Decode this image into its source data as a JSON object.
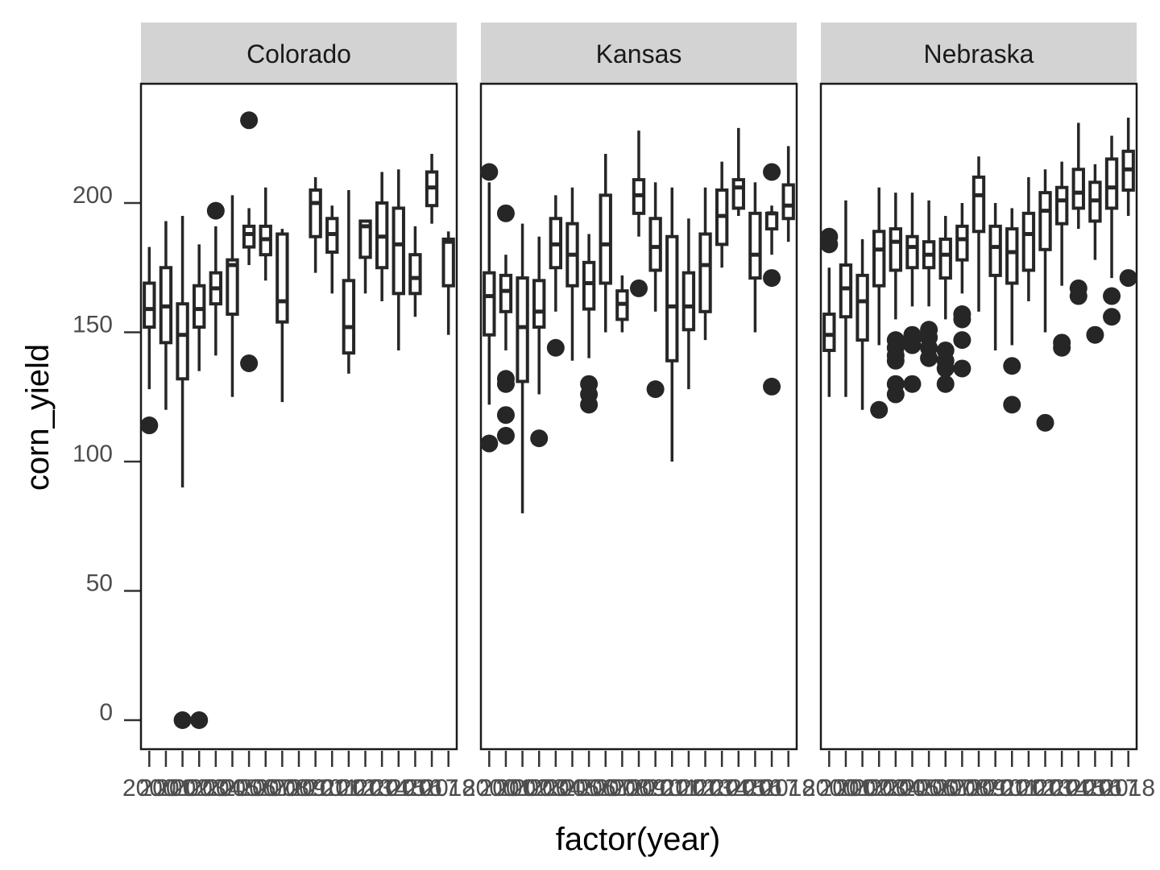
{
  "chart_data": {
    "type": "boxplot",
    "xlabel": "factor(year)",
    "ylabel": "corn_yield",
    "ylim": [
      -12,
      245
    ],
    "yticks": [
      0,
      50,
      100,
      150,
      200
    ],
    "years": [
      "2000",
      "2001",
      "2002",
      "2003",
      "2004",
      "2005",
      "2006",
      "2007",
      "2008",
      "2009",
      "2010",
      "2011",
      "2012",
      "2013",
      "2014",
      "2015",
      "2016",
      "2017",
      "2018"
    ],
    "colors": {
      "box": "#262626",
      "outlier": "#262626",
      "strip": "#d3d3d3",
      "axis": "#333333",
      "panel_border": "#1a1a1a"
    },
    "panels": [
      {
        "name": "Colorado",
        "boxes": [
          {
            "year": "2000",
            "lw": 128,
            "q1": 152,
            "med": 159,
            "q3": 169,
            "uw": 183,
            "outliers": [
              114
            ]
          },
          {
            "year": "2001",
            "lw": 120,
            "q1": 146,
            "med": 160,
            "q3": 175,
            "uw": 193,
            "outliers": []
          },
          {
            "year": "2002",
            "lw": 90,
            "q1": 132,
            "med": 149,
            "q3": 161,
            "uw": 195,
            "outliers": [
              0
            ]
          },
          {
            "year": "2003",
            "lw": 135,
            "q1": 152,
            "med": 159,
            "q3": 168,
            "uw": 184,
            "outliers": [
              0
            ]
          },
          {
            "year": "2004",
            "lw": 141,
            "q1": 161,
            "med": 167,
            "q3": 173,
            "uw": 191,
            "outliers": [
              197
            ]
          },
          {
            "year": "2005",
            "lw": 125,
            "q1": 157,
            "med": 176,
            "q3": 178,
            "uw": 203,
            "outliers": []
          },
          {
            "year": "2006",
            "lw": 176,
            "q1": 183,
            "med": 188,
            "q3": 191,
            "uw": 198,
            "outliers": [
              232,
              138
            ]
          },
          {
            "year": "2007",
            "lw": 170,
            "q1": 180,
            "med": 186,
            "q3": 191,
            "uw": 206,
            "outliers": []
          },
          {
            "year": "2008",
            "lw": 123,
            "q1": 154,
            "med": 162,
            "q3": 188,
            "uw": 190,
            "outliers": []
          },
          {
            "year": "2010",
            "lw": 173,
            "q1": 187,
            "med": 200,
            "q3": 205,
            "uw": 210,
            "outliers": []
          },
          {
            "year": "2011",
            "lw": 165,
            "q1": 181,
            "med": 188,
            "q3": 194,
            "uw": 199,
            "outliers": []
          },
          {
            "year": "2012",
            "lw": 134,
            "q1": 142,
            "med": 152,
            "q3": 170,
            "uw": 205,
            "outliers": []
          },
          {
            "year": "2013",
            "lw": 165,
            "q1": 179,
            "med": 191,
            "q3": 193,
            "uw": 193,
            "outliers": []
          },
          {
            "year": "2014",
            "lw": 162,
            "q1": 175,
            "med": 187,
            "q3": 200,
            "uw": 212,
            "outliers": []
          },
          {
            "year": "2015",
            "lw": 143,
            "q1": 165,
            "med": 184,
            "q3": 198,
            "uw": 213,
            "outliers": []
          },
          {
            "year": "2016",
            "lw": 156,
            "q1": 165,
            "med": 171,
            "q3": 180,
            "uw": 191,
            "outliers": []
          },
          {
            "year": "2017",
            "lw": 192,
            "q1": 199,
            "med": 206,
            "q3": 212,
            "uw": 219,
            "outliers": []
          },
          {
            "year": "2018",
            "lw": 149,
            "q1": 168,
            "med": 185,
            "q3": 186,
            "uw": 189,
            "outliers": []
          }
        ]
      },
      {
        "name": "Kansas",
        "boxes": [
          {
            "year": "2000",
            "lw": 122,
            "q1": 149,
            "med": 164,
            "q3": 173,
            "uw": 208,
            "outliers": [
              212,
              107
            ]
          },
          {
            "year": "2001",
            "lw": 143,
            "q1": 158,
            "med": 166,
            "q3": 172,
            "uw": 180,
            "outliers": [
              196,
              132,
              130,
              118,
              110
            ]
          },
          {
            "year": "2002",
            "lw": 80,
            "q1": 131,
            "med": 152,
            "q3": 171,
            "uw": 192,
            "outliers": []
          },
          {
            "year": "2003",
            "lw": 126,
            "q1": 152,
            "med": 158,
            "q3": 170,
            "uw": 187,
            "outliers": [
              109
            ]
          },
          {
            "year": "2004",
            "lw": 158,
            "q1": 175,
            "med": 184,
            "q3": 194,
            "uw": 203,
            "outliers": [
              144
            ]
          },
          {
            "year": "2005",
            "lw": 139,
            "q1": 168,
            "med": 180,
            "q3": 192,
            "uw": 206,
            "outliers": []
          },
          {
            "year": "2006",
            "lw": 140,
            "q1": 159,
            "med": 169,
            "q3": 177,
            "uw": 188,
            "outliers": [
              130,
              126,
              122
            ]
          },
          {
            "year": "2007",
            "lw": 150,
            "q1": 169,
            "med": 184,
            "q3": 203,
            "uw": 219,
            "outliers": []
          },
          {
            "year": "2008",
            "lw": 150,
            "q1": 155,
            "med": 161,
            "q3": 166,
            "uw": 172,
            "outliers": []
          },
          {
            "year": "2009",
            "lw": 187,
            "q1": 196,
            "med": 203,
            "q3": 209,
            "uw": 228,
            "outliers": [
              167
            ]
          },
          {
            "year": "2010",
            "lw": 158,
            "q1": 174,
            "med": 183,
            "q3": 194,
            "uw": 208,
            "outliers": [
              128
            ]
          },
          {
            "year": "2011",
            "lw": 100,
            "q1": 139,
            "med": 160,
            "q3": 187,
            "uw": 206,
            "outliers": []
          },
          {
            "year": "2012",
            "lw": 128,
            "q1": 151,
            "med": 160,
            "q3": 173,
            "uw": 194,
            "outliers": []
          },
          {
            "year": "2013",
            "lw": 147,
            "q1": 158,
            "med": 176,
            "q3": 188,
            "uw": 206,
            "outliers": []
          },
          {
            "year": "2014",
            "lw": 175,
            "q1": 184,
            "med": 195,
            "q3": 205,
            "uw": 216,
            "outliers": []
          },
          {
            "year": "2015",
            "lw": 195,
            "q1": 198,
            "med": 206,
            "q3": 209,
            "uw": 229,
            "outliers": []
          },
          {
            "year": "2016",
            "lw": 150,
            "q1": 171,
            "med": 180,
            "q3": 196,
            "uw": 208,
            "outliers": []
          },
          {
            "year": "2017",
            "lw": 180,
            "q1": 190,
            "med": 196,
            "q3": 196,
            "uw": 199,
            "outliers": [
              212,
              171,
              129
            ]
          },
          {
            "year": "2018",
            "lw": 185,
            "q1": 194,
            "med": 199,
            "q3": 207,
            "uw": 222,
            "outliers": []
          }
        ]
      },
      {
        "name": "Nebraska",
        "boxes": [
          {
            "year": "2000",
            "lw": 125,
            "q1": 143,
            "med": 149,
            "q3": 157,
            "uw": 175,
            "outliers": [
              187,
              184
            ]
          },
          {
            "year": "2001",
            "lw": 125,
            "q1": 156,
            "med": 167,
            "q3": 176,
            "uw": 201,
            "outliers": []
          },
          {
            "year": "2002",
            "lw": 120,
            "q1": 147,
            "med": 162,
            "q3": 172,
            "uw": 186,
            "outliers": []
          },
          {
            "year": "2003",
            "lw": 145,
            "q1": 168,
            "med": 182,
            "q3": 189,
            "uw": 206,
            "outliers": [
              120
            ]
          },
          {
            "year": "2004",
            "lw": 155,
            "q1": 174,
            "med": 185,
            "q3": 190,
            "uw": 204,
            "outliers": [
              147,
              144,
              141,
              139,
              130,
              126
            ]
          },
          {
            "year": "2005",
            "lw": 160,
            "q1": 175,
            "med": 183,
            "q3": 187,
            "uw": 204,
            "outliers": [
              149,
              147,
              145,
              130
            ]
          },
          {
            "year": "2006",
            "lw": 160,
            "q1": 175,
            "med": 180,
            "q3": 185,
            "uw": 201,
            "outliers": [
              151,
              148,
              144,
              140
            ]
          },
          {
            "year": "2007",
            "lw": 155,
            "q1": 171,
            "med": 180,
            "q3": 186,
            "uw": 195,
            "outliers": [
              143,
              139,
              136,
              130
            ]
          },
          {
            "year": "2008",
            "lw": 165,
            "q1": 178,
            "med": 186,
            "q3": 191,
            "uw": 200,
            "outliers": [
              157,
              155,
              147,
              136
            ]
          },
          {
            "year": "2009",
            "lw": 158,
            "q1": 189,
            "med": 203,
            "q3": 210,
            "uw": 218,
            "outliers": []
          },
          {
            "year": "2010",
            "lw": 143,
            "q1": 172,
            "med": 183,
            "q3": 191,
            "uw": 200,
            "outliers": []
          },
          {
            "year": "2011",
            "lw": 145,
            "q1": 169,
            "med": 181,
            "q3": 190,
            "uw": 198,
            "outliers": [
              137,
              122
            ]
          },
          {
            "year": "2012",
            "lw": 162,
            "q1": 174,
            "med": 188,
            "q3": 196,
            "uw": 210,
            "outliers": []
          },
          {
            "year": "2013",
            "lw": 150,
            "q1": 182,
            "med": 197,
            "q3": 204,
            "uw": 213,
            "outliers": [
              115
            ]
          },
          {
            "year": "2014",
            "lw": 168,
            "q1": 192,
            "med": 201,
            "q3": 206,
            "uw": 216,
            "outliers": [
              146,
              144
            ]
          },
          {
            "year": "2015",
            "lw": 190,
            "q1": 198,
            "med": 204,
            "q3": 213,
            "uw": 231,
            "outliers": [
              167,
              164
            ]
          },
          {
            "year": "2016",
            "lw": 178,
            "q1": 193,
            "med": 201,
            "q3": 208,
            "uw": 215,
            "outliers": [
              149
            ]
          },
          {
            "year": "2017",
            "lw": 171,
            "q1": 198,
            "med": 206,
            "q3": 217,
            "uw": 226,
            "outliers": [
              164,
              156
            ]
          },
          {
            "year": "2018",
            "lw": 195,
            "q1": 205,
            "med": 213,
            "q3": 220,
            "uw": 233,
            "outliers": [
              171
            ]
          }
        ]
      }
    ]
  }
}
